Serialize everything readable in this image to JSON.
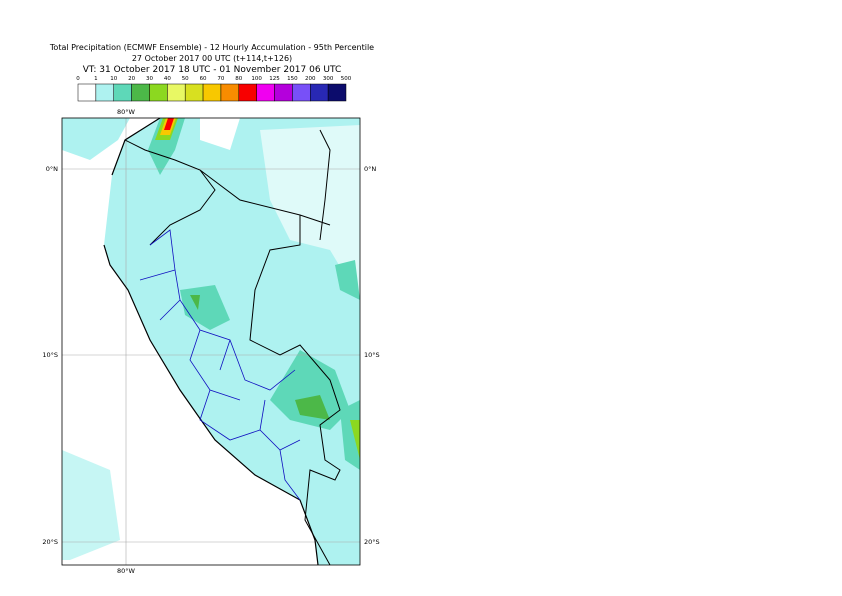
{
  "header": {
    "title_lines": [
      "Total Precipitation (ECMWF Ensemble) - 12 Hourly Accumulation - 95th Percentile",
      "27 October 2017 00 UTC (t+114,t+126)",
      "VT: 31 October 2017 18 UTC - 01 November 2017 06 UTC"
    ]
  },
  "legend": {
    "labels": [
      "0",
      "1",
      "10",
      "20",
      "30",
      "40",
      "50",
      "60",
      "70",
      "80",
      "100",
      "125",
      "150",
      "200",
      "300",
      "500"
    ],
    "colors": [
      "#ffffff",
      "#aef2f0",
      "#5ed8b8",
      "#4cb848",
      "#8cd820",
      "#e8f864",
      "#d8e020",
      "#f8c800",
      "#f88c00",
      "#f80000",
      "#f000f0",
      "#b400dc",
      "#7850f8",
      "#2828b4",
      "#0c0c6c"
    ]
  },
  "map": {
    "lat_labels": [
      "0°N",
      "10°S",
      "20°S"
    ],
    "lon_label": "80°W"
  }
}
